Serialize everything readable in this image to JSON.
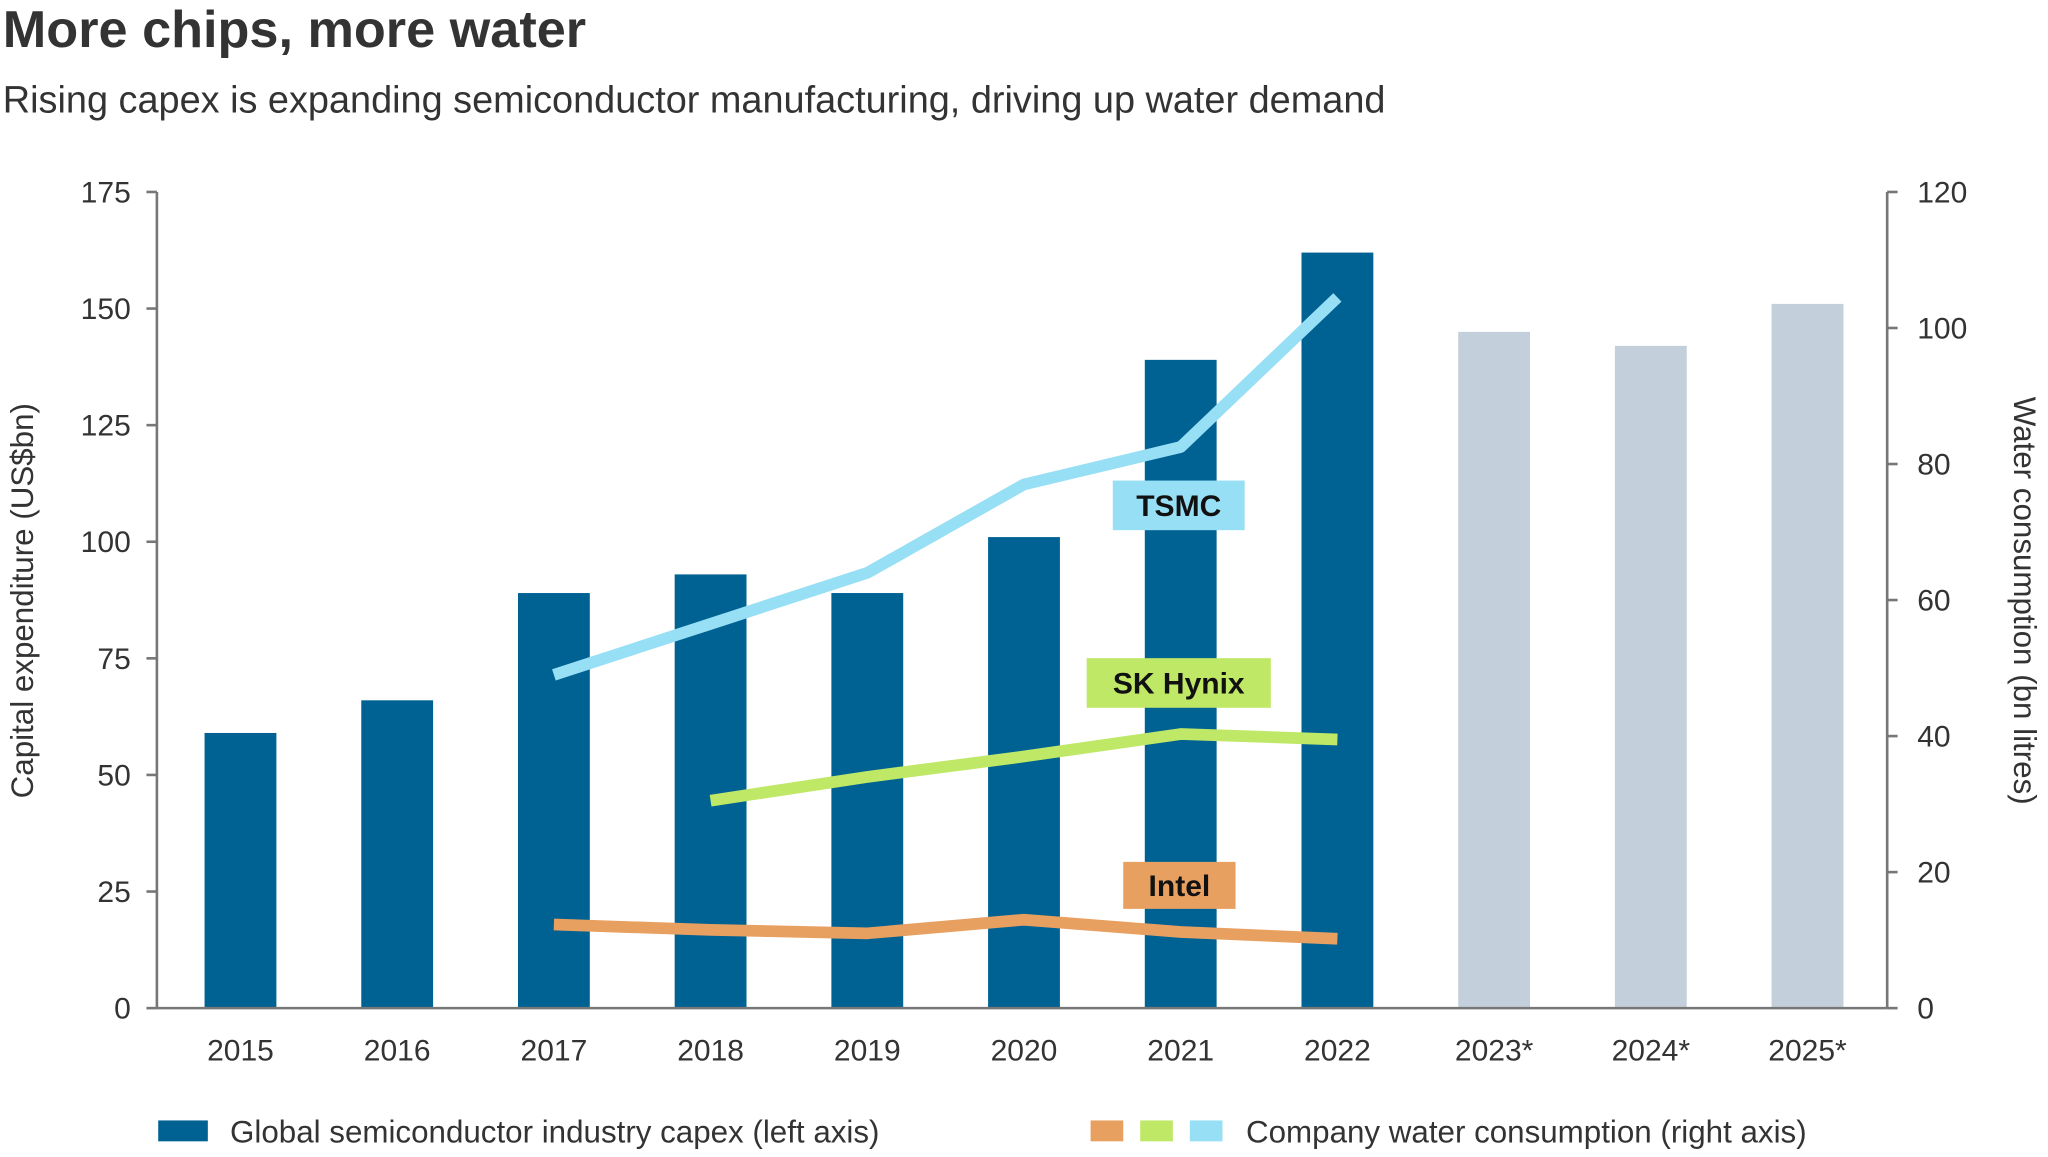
{
  "chart_data": {
    "type": "bar+line",
    "title": "More chips, more water",
    "subtitle": "Rising capex is expanding semiconductor manufacturing, driving up water demand",
    "categories": [
      "2015",
      "2016",
      "2017",
      "2018",
      "2019",
      "2020",
      "2021",
      "2022",
      "2023*",
      "2024*",
      "2025*"
    ],
    "ylabel": "Capital expenditure (US$bn)",
    "y2label": "Water consumption (bn litres)",
    "ylim": [
      0,
      175
    ],
    "yticks": [
      0,
      25,
      50,
      75,
      100,
      125,
      150,
      175
    ],
    "y2lim": [
      0,
      120
    ],
    "y2ticks": [
      0,
      20,
      40,
      60,
      80,
      100,
      120
    ],
    "grid": false,
    "bars": {
      "name": "Global semiconductor industry capex (left axis)",
      "values": [
        59,
        66,
        89,
        93,
        89,
        101,
        139,
        162,
        145,
        142,
        151
      ],
      "color": "#006193",
      "forecast_color": "#c3d0db",
      "forecast_from": "2023*"
    },
    "lines_legend": "Company water consumption (right axis)",
    "series": [
      {
        "name": "TSMC",
        "color": "#97dff5",
        "values": [
          null,
          null,
          49,
          56.5,
          64,
          77,
          82.5,
          104.5,
          null,
          null,
          null
        ]
      },
      {
        "name": "SK Hynix",
        "color": "#bfe866",
        "values": [
          null,
          null,
          null,
          30.5,
          34,
          37,
          40.3,
          39.5,
          null,
          null,
          null
        ]
      },
      {
        "name": "Intel",
        "color": "#e8a060",
        "values": [
          null,
          null,
          12.3,
          11.5,
          11,
          13,
          11.2,
          10.2,
          null,
          null,
          null
        ]
      }
    ],
    "legend_position": "bottom"
  }
}
